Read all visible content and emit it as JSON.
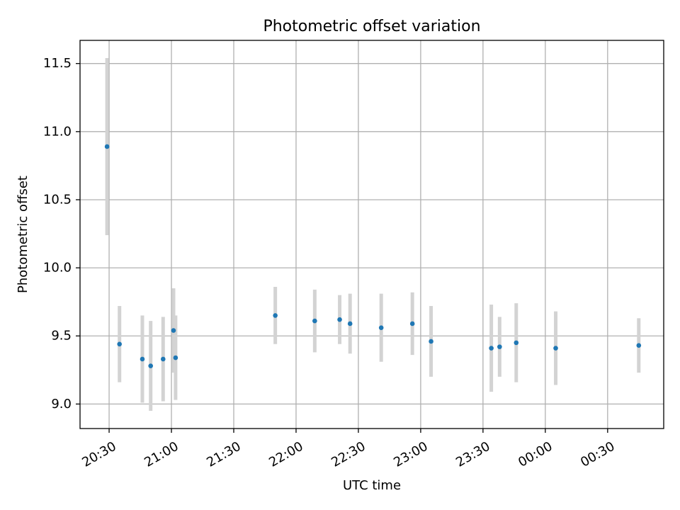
{
  "chart_data": {
    "type": "scatter",
    "title": "Photometric offset variation",
    "xlabel": "UTC time",
    "ylabel": "Photometric offset",
    "xlim": [
      "20:16",
      "00:57"
    ],
    "ylim": [
      8.82,
      11.67
    ],
    "x_ticks": [
      "20:30",
      "21:00",
      "21:30",
      "22:00",
      "22:30",
      "23:00",
      "23:30",
      "00:00",
      "00:30"
    ],
    "y_ticks": [
      "9.0",
      "9.5",
      "10.0",
      "10.5",
      "11.0",
      "11.5"
    ],
    "grid": true,
    "colors": {
      "points": "#1f77b4",
      "errorbars": "#d3d3d3",
      "grid": "#b0b0b0"
    },
    "points": [
      {
        "x": "20:29",
        "y": 10.89,
        "err": 0.65
      },
      {
        "x": "20:35",
        "y": 9.44,
        "err": 0.28
      },
      {
        "x": "20:46",
        "y": 9.33,
        "err": 0.32
      },
      {
        "x": "20:50",
        "y": 9.28,
        "err": 0.33
      },
      {
        "x": "20:56",
        "y": 9.33,
        "err": 0.31
      },
      {
        "x": "21:01",
        "y": 9.54,
        "err": 0.31
      },
      {
        "x": "21:02",
        "y": 9.34,
        "err": 0.31
      },
      {
        "x": "21:50",
        "y": 9.65,
        "err": 0.21
      },
      {
        "x": "22:09",
        "y": 9.61,
        "err": 0.23
      },
      {
        "x": "22:21",
        "y": 9.62,
        "err": 0.18
      },
      {
        "x": "22:26",
        "y": 9.59,
        "err": 0.22
      },
      {
        "x": "22:41",
        "y": 9.56,
        "err": 0.25
      },
      {
        "x": "22:56",
        "y": 9.59,
        "err": 0.23
      },
      {
        "x": "23:05",
        "y": 9.46,
        "err": 0.26
      },
      {
        "x": "23:34",
        "y": 9.41,
        "err": 0.32
      },
      {
        "x": "23:38",
        "y": 9.42,
        "err": 0.22
      },
      {
        "x": "23:46",
        "y": 9.45,
        "err": 0.29
      },
      {
        "x": "00:05",
        "y": 9.41,
        "err": 0.27
      },
      {
        "x": "00:45",
        "y": 9.43,
        "err": 0.2
      }
    ]
  }
}
